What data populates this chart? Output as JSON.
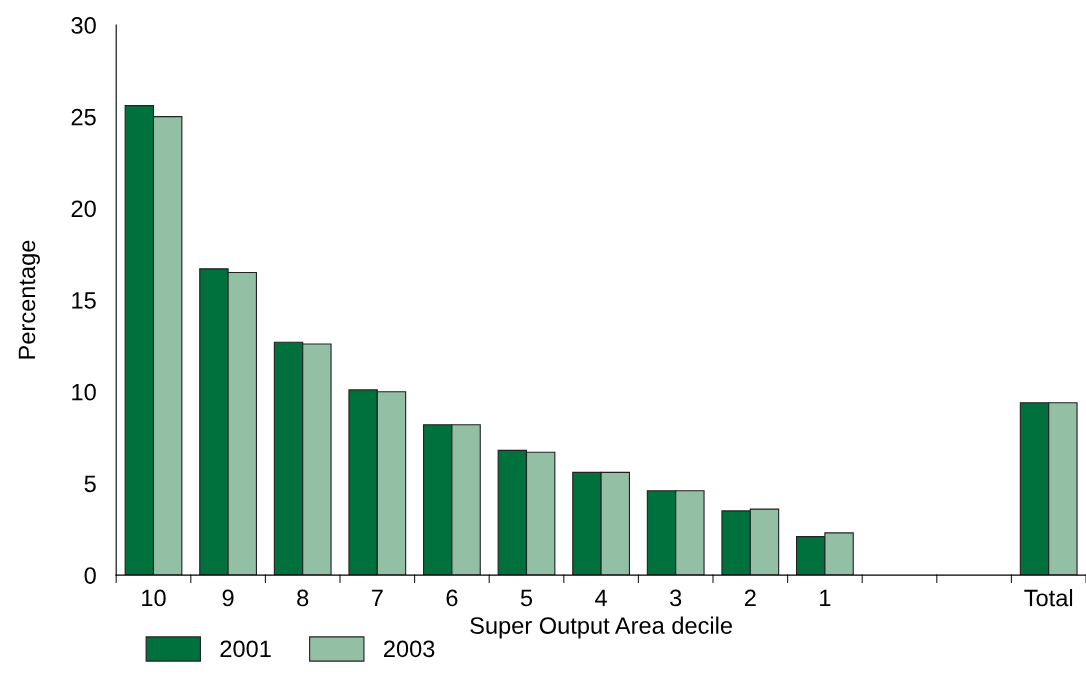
{
  "chart_data": {
    "type": "bar",
    "xlabel": "Super Output Area decile",
    "ylabel": "Percentage",
    "categories": [
      "10",
      "9",
      "8",
      "7",
      "6",
      "5",
      "4",
      "3",
      "2",
      "1",
      null,
      null,
      "Total"
    ],
    "series": [
      {
        "name": "2001",
        "color": "#00703c",
        "values": [
          25.6,
          16.7,
          12.7,
          10.1,
          8.2,
          6.8,
          5.6,
          4.6,
          3.5,
          2.1,
          null,
          null,
          9.4
        ]
      },
      {
        "name": "2003",
        "color": "#93bfa5",
        "values": [
          25.0,
          16.5,
          12.6,
          10.0,
          8.2,
          6.7,
          5.6,
          4.6,
          3.6,
          2.3,
          null,
          null,
          9.4
        ]
      }
    ],
    "ylim": [
      0,
      30
    ],
    "yticks": [
      0,
      5,
      10,
      15,
      20,
      25,
      30
    ],
    "grid": false,
    "legend": "bottom left"
  }
}
